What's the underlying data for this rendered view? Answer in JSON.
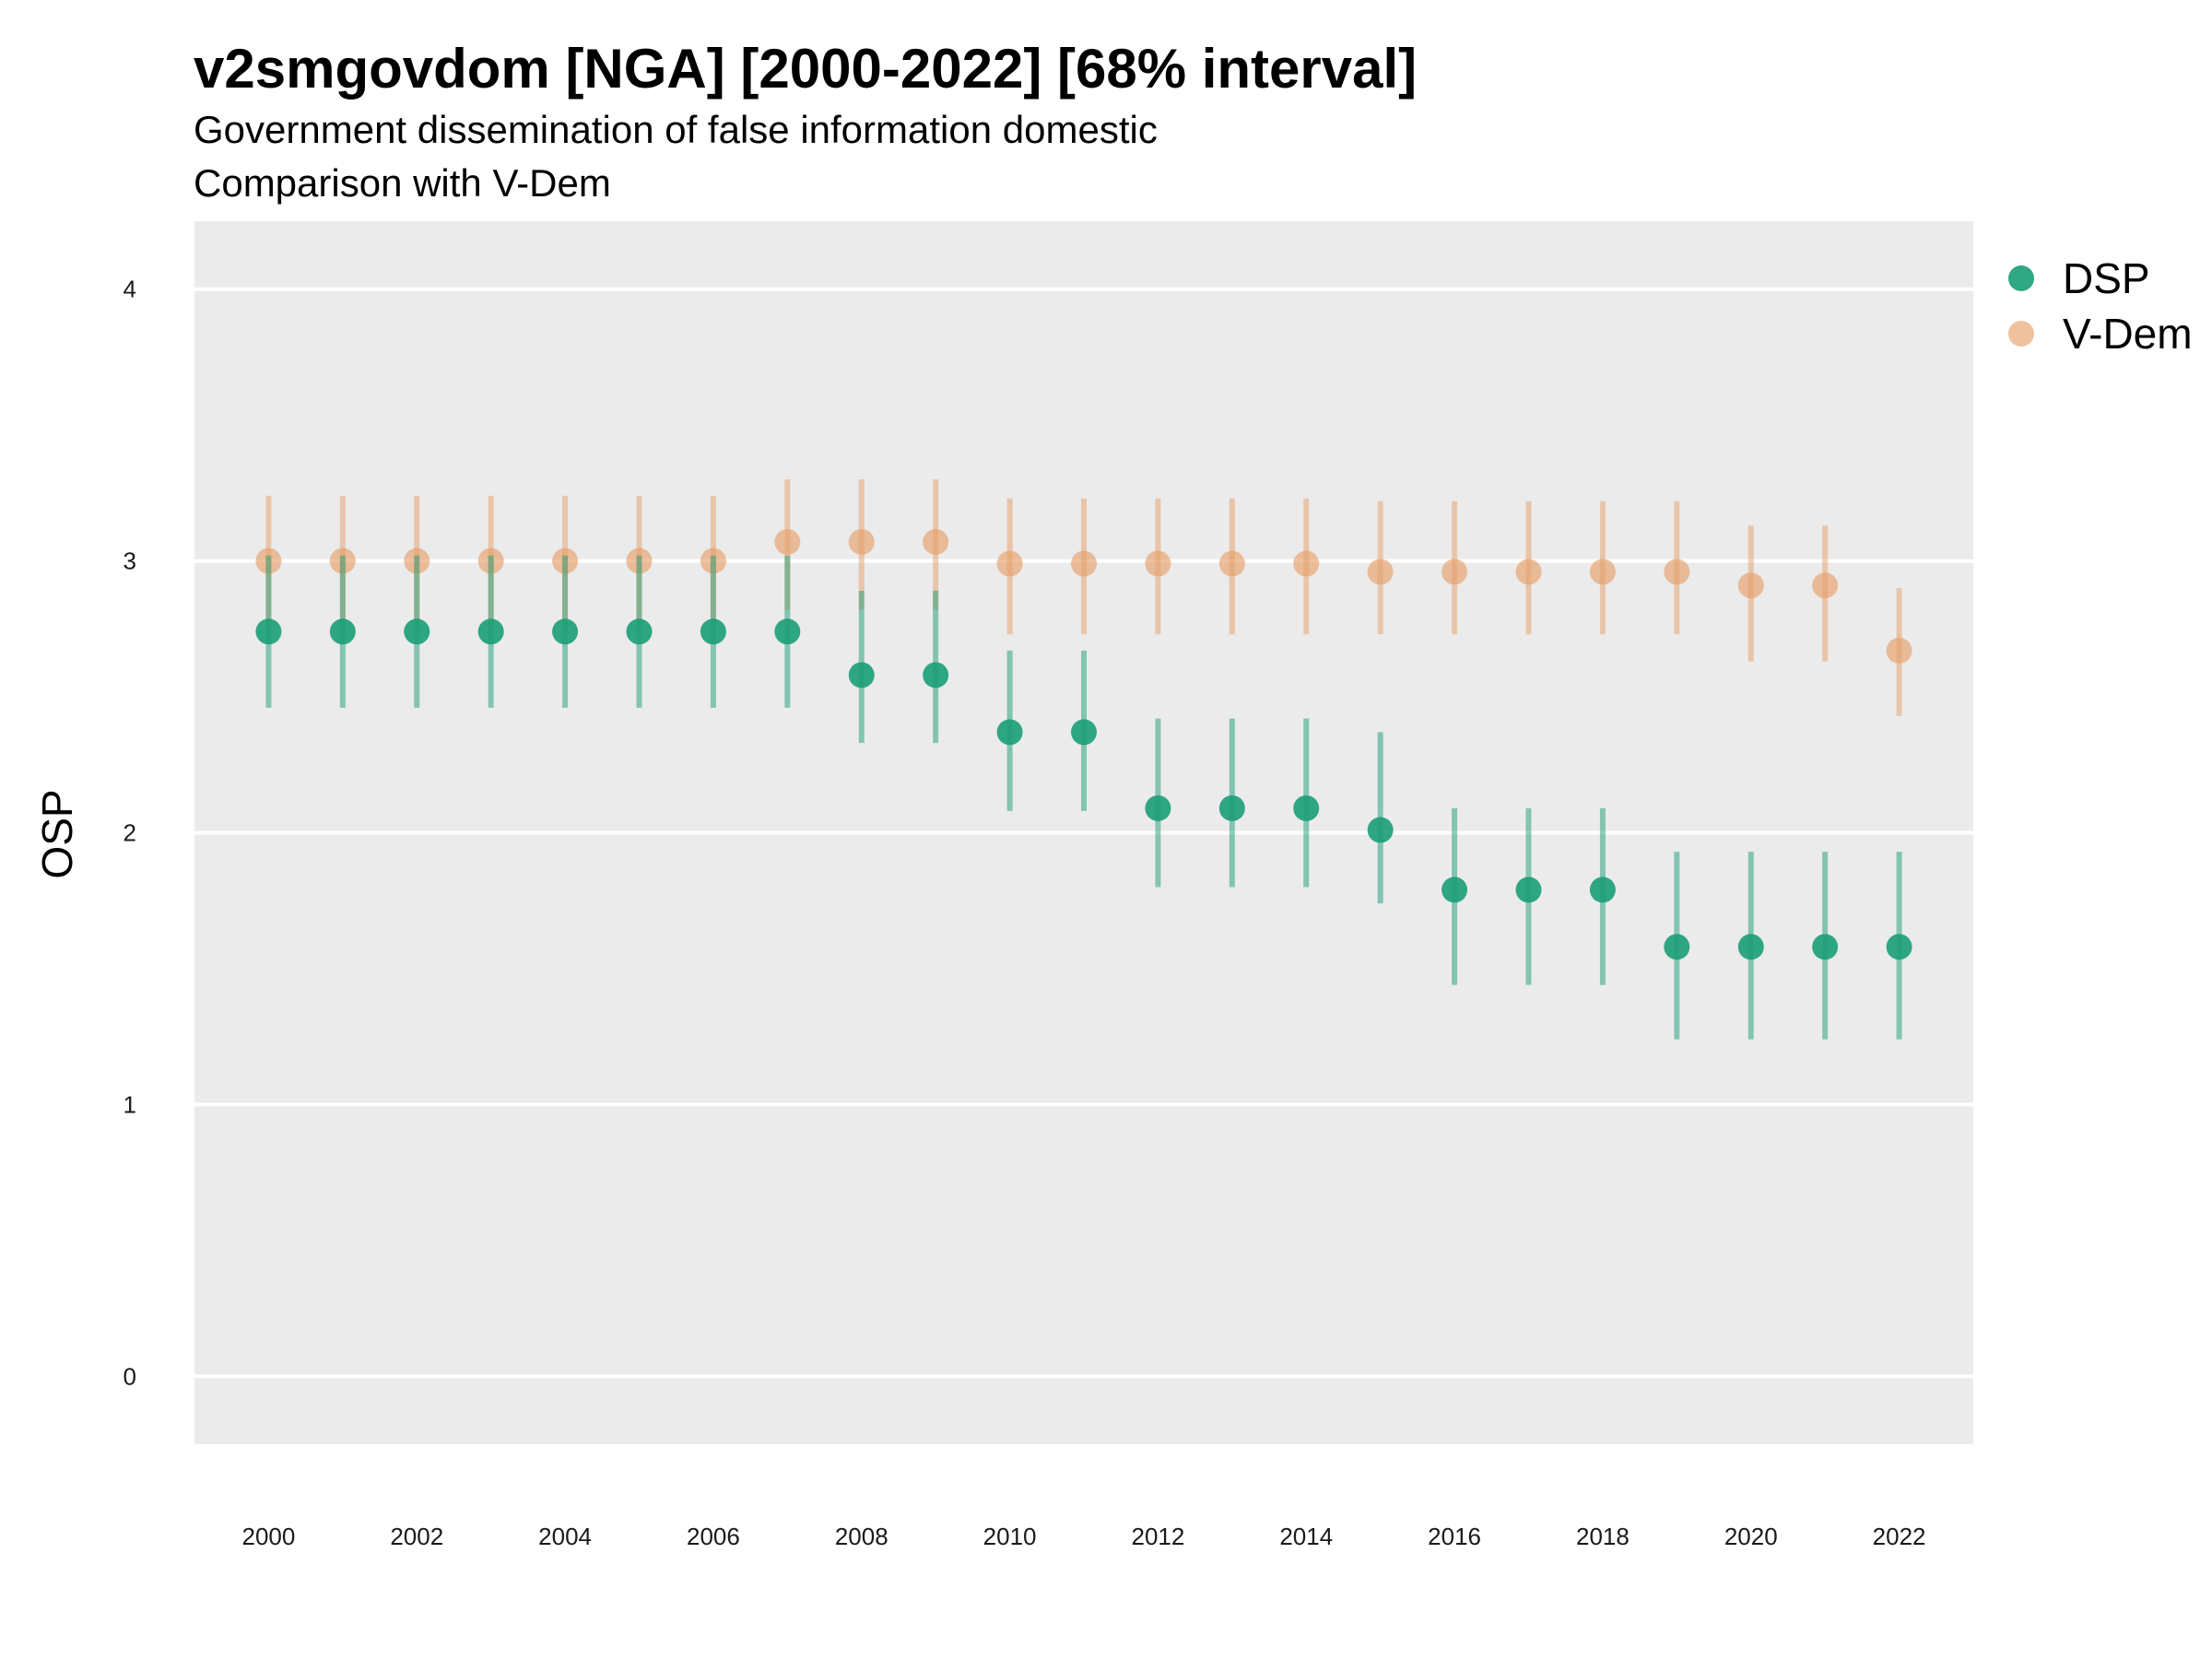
{
  "chart_data": {
    "type": "scatter",
    "title": "v2smgovdom [NGA] [2000-2022] [68% interval]",
    "subtitle": "Government dissemination of false information domestic",
    "subtitle2": "Comparison with V-Dem",
    "ylabel": "OSP",
    "xlabel": "",
    "ylim": [
      -0.25,
      4.25
    ],
    "xlim": [
      1999,
      2023
    ],
    "yticks": [
      0,
      1,
      2,
      3,
      4
    ],
    "xticks": [
      2000,
      2002,
      2004,
      2006,
      2008,
      2010,
      2012,
      2014,
      2016,
      2018,
      2020,
      2022
    ],
    "grid": true,
    "legend_position": "right-top",
    "series": [
      {
        "name": "DSP",
        "color": "#1b9e77",
        "x": [
          2000,
          2001,
          2002,
          2003,
          2004,
          2005,
          2006,
          2007,
          2008,
          2009,
          2010,
          2011,
          2012,
          2013,
          2014,
          2015,
          2016,
          2017,
          2018,
          2019,
          2020,
          2021,
          2022
        ],
        "values": [
          2.74,
          2.74,
          2.74,
          2.74,
          2.74,
          2.74,
          2.74,
          2.74,
          2.58,
          2.58,
          2.37,
          2.37,
          2.09,
          2.09,
          2.09,
          2.01,
          1.79,
          1.79,
          1.79,
          1.58,
          1.58,
          1.58,
          1.58
        ],
        "lower": [
          2.46,
          2.46,
          2.46,
          2.46,
          2.46,
          2.46,
          2.46,
          2.46,
          2.33,
          2.33,
          2.08,
          2.08,
          1.8,
          1.8,
          1.8,
          1.74,
          1.44,
          1.44,
          1.44,
          1.24,
          1.24,
          1.24,
          1.24
        ],
        "upper": [
          3.02,
          3.02,
          3.02,
          3.02,
          3.02,
          3.02,
          3.02,
          3.02,
          2.89,
          2.89,
          2.67,
          2.67,
          2.42,
          2.42,
          2.42,
          2.37,
          2.09,
          2.09,
          2.09,
          1.93,
          1.93,
          1.93,
          1.93
        ]
      },
      {
        "name": "V-Dem",
        "color": "#e6a06a",
        "x": [
          2000,
          2001,
          2002,
          2003,
          2004,
          2005,
          2006,
          2007,
          2008,
          2009,
          2010,
          2011,
          2012,
          2013,
          2014,
          2015,
          2016,
          2017,
          2018,
          2019,
          2020,
          2021,
          2022
        ],
        "values": [
          3.0,
          3.0,
          3.0,
          3.0,
          3.0,
          3.0,
          3.0,
          3.07,
          3.07,
          3.07,
          2.99,
          2.99,
          2.99,
          2.99,
          2.99,
          2.96,
          2.96,
          2.96,
          2.96,
          2.96,
          2.91,
          2.91,
          2.67
        ],
        "lower": [
          2.76,
          2.76,
          2.76,
          2.76,
          2.76,
          2.76,
          2.76,
          2.82,
          2.82,
          2.82,
          2.73,
          2.73,
          2.73,
          2.73,
          2.73,
          2.73,
          2.73,
          2.73,
          2.73,
          2.73,
          2.63,
          2.63,
          2.43
        ],
        "upper": [
          3.24,
          3.24,
          3.24,
          3.24,
          3.24,
          3.24,
          3.24,
          3.3,
          3.3,
          3.3,
          3.23,
          3.23,
          3.23,
          3.23,
          3.23,
          3.22,
          3.22,
          3.22,
          3.22,
          3.22,
          3.13,
          3.13,
          2.9
        ]
      }
    ]
  }
}
